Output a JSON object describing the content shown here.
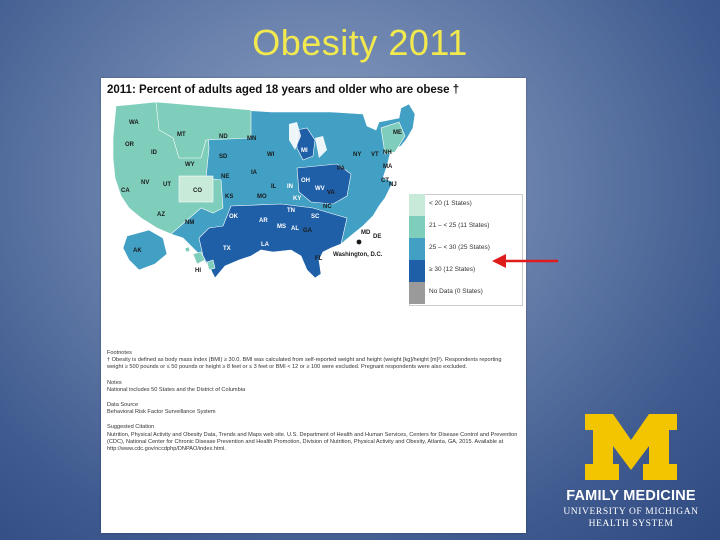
{
  "slide": {
    "title": "Obesity 2011"
  },
  "chart": {
    "title": "2011: Percent of adults aged 18 years and older who are obese †",
    "washington_label": "Washington, D.C."
  },
  "legend": [
    {
      "label": "< 20 (1 States)",
      "color": "#c7ead9"
    },
    {
      "label": "21 – < 25 (11 States)",
      "color": "#7fcdbb"
    },
    {
      "label": "25 – < 30 (25 States)",
      "color": "#41a0c4"
    },
    {
      "label": "≥ 30 (12 States)",
      "color": "#1f5fa8"
    },
    {
      "label": "No Data (0 States)",
      "color": "#9a9a9a"
    }
  ],
  "states": [
    "WA",
    "OR",
    "CA",
    "NV",
    "ID",
    "MT",
    "WY",
    "UT",
    "CO",
    "AZ",
    "NM",
    "ND",
    "SD",
    "NE",
    "KS",
    "OK",
    "TX",
    "MN",
    "IA",
    "MO",
    "AR",
    "LA",
    "WI",
    "IL",
    "MI",
    "IN",
    "OH",
    "KY",
    "TN",
    "MS",
    "AL",
    "GA",
    "FL",
    "SC",
    "NC",
    "VA",
    "WV",
    "PA",
    "NY",
    "VT",
    "NH",
    "ME",
    "MA",
    "CT",
    "NJ",
    "DE",
    "MD",
    "AK",
    "HI"
  ],
  "notes": {
    "footnotes_head": "Footnotes",
    "footnotes_body": "† Obesity is defined as body mass index (BMI) ≥ 30.0. BMI was calculated from self-reported weight and height (weight [kg]/height [m]²). Respondents reporting weight ≥ 500 pounds or ≤ 50 pounds or height ≥ 8 feet or ≤ 3 feet or BMI < 12 or ≥ 100 were excluded. Pregnant respondents were also excluded.",
    "notes_head": "Notes",
    "notes_body": "National includes 50 States and the District of Columbia",
    "source_head": "Data Source",
    "source_body": "Behavioral Risk Factor Surveillance System",
    "citation_head": "Suggested Citation",
    "citation_body": "Nutrition, Physical Activity and Obesity Data, Trends and Maps web site. U.S. Department of Health and Human Services, Centers for Disease Control and Prevention (CDC), National Center for Chronic Disease Prevention and Health Promotion, Division of Nutrition, Physical Activity and Obesity, Atlanta, GA, 2015. Available at http://www.cdc.gov/nccdphp/DNPAO/index.html."
  },
  "logo": {
    "letter": "M",
    "line1": "FAMILY MEDICINE",
    "line2": "UNIVERSITY OF MICHIGAN",
    "line3": "HEALTH SYSTEM",
    "color_maize": "#f2c500"
  }
}
